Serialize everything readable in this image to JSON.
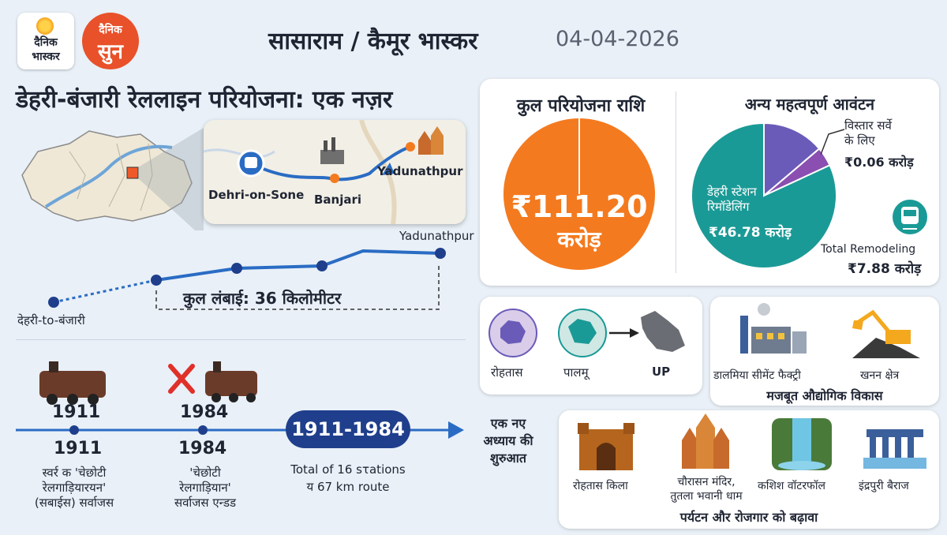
{
  "header": {
    "logo_left_line1": "दैनिक",
    "logo_left_line2": "भास्कर",
    "logo_right_line1": "दैनिक",
    "logo_right_line2": "सुन",
    "paper_name": "सासाराम / कैमूर भास्कर",
    "date": "04-04-2026"
  },
  "main_title": "डेहरी-बंजारी रेललाइन परियोजना: एक नज़र",
  "route_map": {
    "stations": [
      "Dehri-on-Sone",
      "Banjari",
      "Yadunathpur"
    ]
  },
  "length_section": {
    "start_label": "देहरी-to-बंजारी",
    "end_label": "Yadunathpur",
    "length_text": "कुल लंबाई: 36 किलोमीटर"
  },
  "history": {
    "year_1911_top": "1911",
    "year_1911_bottom": "1911",
    "desc_1911_line1": "स्वर्र क 'चेछोटी",
    "desc_1911_line2": "रेलगाड़ियारयन'",
    "desc_1911_line3": "(सबाईस) सर्वाजस",
    "year_1984_top": "1984",
    "year_1984_bottom": "1984",
    "desc_1984_line1": "'चेछोटी",
    "desc_1984_line2": "रेलगाड़ियान'",
    "desc_1984_line3": "सर्वाजस एन्डड",
    "range_pill": "1911-1984",
    "range_desc_line1": "Total of 16 sτations",
    "range_desc_line2": "य 67 km route",
    "new_chapter_line1": "एक नए",
    "new_chapter_line2": "अध्याय की",
    "new_chapter_line3": "शुरुआत"
  },
  "total_cost": {
    "heading": "कुल परियोजना राशि",
    "amount": "₹111.20",
    "unit": "करोड़"
  },
  "allocations": {
    "heading": "अन्य महत्वपूर्ण आवंटन",
    "survey_line1": "विस्तार सर्वे",
    "survey_line2": "के लिए",
    "survey_amount": "₹0.06 करोड़",
    "station_line1": "डेहरी स्टेशन",
    "station_line2": "रिमॉडेलिंग",
    "station_amount": "₹46.78 करोड़",
    "remodel_label": "Total Remodeling",
    "remodel_amount": "₹7.88 करोड़"
  },
  "chart_data": {
    "type": "pie",
    "slices": [
      {
        "label": "डेहरी स्टेशन रिमॉडेलिंग",
        "value": 46.78,
        "color": "#1a9a96"
      },
      {
        "label": "Total Remodeling",
        "value": 7.88,
        "color": "#6b5bb8"
      },
      {
        "label": "विस्तार सर्वे के लिए",
        "value": 0.06,
        "color": "#8a4fb0"
      }
    ]
  },
  "regions": {
    "labels": [
      "रोहतास",
      "पालमू",
      "UP"
    ]
  },
  "industry": {
    "cement": "डालमिया सीमेंट फैक्ट्री",
    "mining": "खनन क्षेत्र",
    "caption": "मजबूत औद्योगिक विकास"
  },
  "tourism": {
    "fort": "रोहतास किला",
    "temple_line1": "चौरासन मंदिर,",
    "temple_line2": "तुतला भवानी धाम",
    "waterfall": "कशिश वॉटरफॉल",
    "barrage": "इंद्रपुरी बैराज",
    "caption": "पर्यटन और रोजगार को बढ़ावा"
  },
  "colors": {
    "orange": "#f47a1f",
    "teal": "#1a9a96",
    "purple": "#8a4fb0",
    "navy": "#1f3f8c",
    "blue": "#2a6cc4"
  }
}
